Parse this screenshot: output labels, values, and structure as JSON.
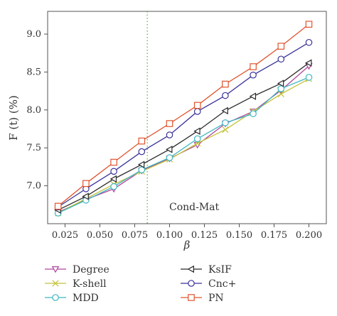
{
  "chart_data": {
    "type": "line",
    "title": "",
    "xlabel": "β",
    "ylabel": "F (t) (%)",
    "annotation": "Cond-Mat",
    "reference_line_x": 0.084,
    "xlim": [
      0.0125,
      0.2125
    ],
    "ylim": [
      6.5,
      9.3
    ],
    "x_ticks": [
      0.025,
      0.05,
      0.075,
      0.1,
      0.125,
      0.15,
      0.175,
      0.2
    ],
    "x_tick_labels": [
      "0.025",
      "0.050",
      "0.075",
      "0.100",
      "0.125",
      "0.150",
      "0.175",
      "0.200"
    ],
    "y_ticks": [
      7.0,
      7.5,
      8.0,
      8.5,
      9.0
    ],
    "y_tick_labels": [
      "7.0",
      "7.5",
      "8.0",
      "8.5",
      "9.0"
    ],
    "grid": false,
    "legend_position": "bottom",
    "x": [
      0.02,
      0.04,
      0.06,
      0.08,
      0.1,
      0.12,
      0.14,
      0.16,
      0.18,
      0.2
    ],
    "series": [
      {
        "name": "Degree",
        "color": "#b0469c",
        "marker": "triangle-down",
        "values": [
          6.65,
          6.82,
          6.96,
          7.2,
          7.36,
          7.54,
          7.82,
          7.98,
          8.26,
          8.58
        ]
      },
      {
        "name": "K-shell",
        "color": "#c4c23a",
        "marker": "x",
        "values": [
          6.64,
          6.83,
          7.02,
          7.19,
          7.35,
          7.56,
          7.74,
          7.98,
          8.21,
          8.41
        ]
      },
      {
        "name": "MDD",
        "color": "#3fb6c1",
        "marker": "circle",
        "values": [
          6.64,
          6.81,
          6.99,
          7.21,
          7.37,
          7.62,
          7.83,
          7.95,
          8.28,
          8.43
        ]
      },
      {
        "name": "KsIF",
        "color": "#2a2a2a",
        "marker": "triangle-left",
        "values": [
          6.68,
          6.86,
          7.09,
          7.28,
          7.48,
          7.72,
          7.99,
          8.18,
          8.35,
          8.62
        ]
      },
      {
        "name": "Cnc+",
        "color": "#3a3399",
        "marker": "circle",
        "values": [
          6.72,
          6.96,
          7.19,
          7.45,
          7.67,
          7.98,
          8.19,
          8.46,
          8.67,
          8.89
        ]
      },
      {
        "name": "PN",
        "color": "#e0542e",
        "marker": "square",
        "values": [
          6.73,
          7.03,
          7.31,
          7.59,
          7.82,
          8.06,
          8.34,
          8.57,
          8.84,
          9.13
        ]
      }
    ]
  }
}
